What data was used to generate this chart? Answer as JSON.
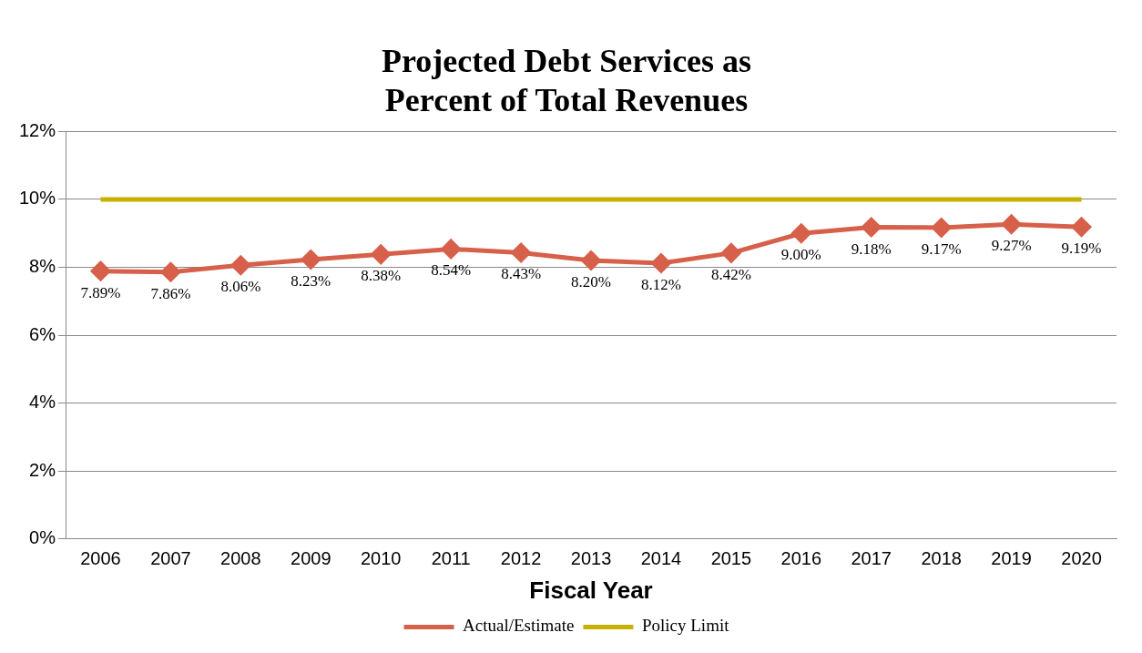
{
  "chart_data": {
    "type": "line",
    "title": [
      "Projected Debt Services as",
      "Percent of Total Revenues"
    ],
    "xlabel": "Fiscal Year",
    "categories": [
      "2006",
      "2007",
      "2008",
      "2009",
      "2010",
      "2011",
      "2012",
      "2013",
      "2014",
      "2015",
      "2016",
      "2017",
      "2018",
      "2019",
      "2020"
    ],
    "series": [
      {
        "name": "Actual/Estimate",
        "color": "#d6604a",
        "marker": "diamond",
        "values": [
          7.89,
          7.86,
          8.06,
          8.23,
          8.38,
          8.54,
          8.43,
          8.2,
          8.12,
          8.42,
          9.0,
          9.18,
          9.17,
          9.27,
          9.19
        ],
        "value_labels": [
          "7.89%",
          "7.86%",
          "8.06%",
          "8.23%",
          "8.38%",
          "8.54%",
          "8.43%",
          "8.20%",
          "8.12%",
          "8.42%",
          "9.00%",
          "9.18%",
          "9.17%",
          "9.27%",
          "9.19%"
        ]
      },
      {
        "name": "Policy Limit",
        "color": "#c8b000",
        "marker": "none",
        "values": [
          10,
          10,
          10,
          10,
          10,
          10,
          10,
          10,
          10,
          10,
          10,
          10,
          10,
          10,
          10
        ]
      }
    ],
    "ylim": [
      0,
      12
    ],
    "yticks": [
      {
        "value": 0,
        "label": "0%"
      },
      {
        "value": 2,
        "label": "2%"
      },
      {
        "value": 4,
        "label": "4%"
      },
      {
        "value": 6,
        "label": "6%"
      },
      {
        "value": 8,
        "label": "8%"
      },
      {
        "value": 10,
        "label": "10%"
      },
      {
        "value": 12,
        "label": "12%"
      }
    ],
    "grid": "y",
    "legend": "bottom"
  }
}
